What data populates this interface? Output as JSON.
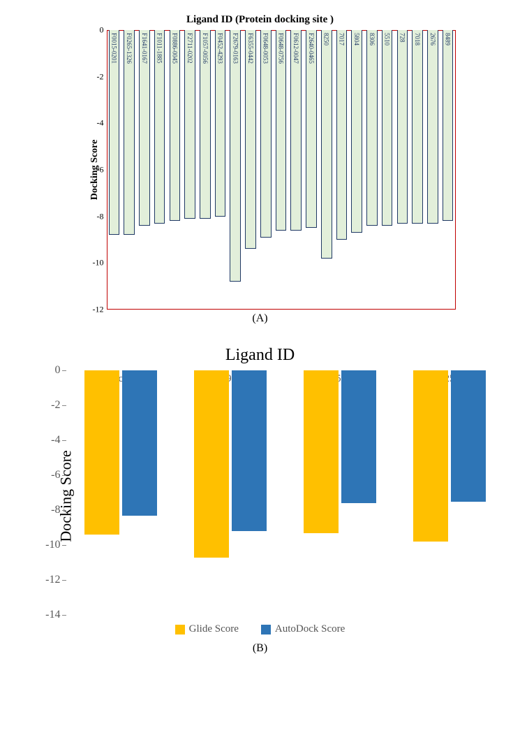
{
  "chartA": {
    "type": "bar",
    "title": "Ligand ID (Protein docking site )",
    "title_fontsize": 15,
    "ylabel": "Docking Score",
    "ylabel_fontsize": 14,
    "ylim": [
      -12,
      0
    ],
    "ytick_step": 2,
    "yticks": [
      0,
      -2,
      -4,
      -6,
      -8,
      -10,
      -12
    ],
    "plot_border_color": "#c00000",
    "bar_fill": "#e2efda",
    "bar_border": "#1f3864",
    "bar_border_width": 1.5,
    "bar_label_color": "#1f3864",
    "bar_label_fontsize": 9,
    "background_color": "#ffffff",
    "categories": [
      "F0015-0201",
      "F0265-1326",
      "F1641-0167",
      "F1011-1885",
      "F0886-0045",
      "F2711-0202",
      "F1057-0056",
      "F0452-4293",
      "F2679-0163",
      "F6355-0442",
      "F0648-0053",
      "F0648-0756",
      "F0612-0047",
      "F2640-0465",
      "8250",
      "7017",
      "5804",
      "8306",
      "5510",
      "728",
      "7018",
      "2676",
      "8489"
    ],
    "values": [
      -8.8,
      -8.8,
      -8.4,
      -8.3,
      -8.2,
      -8.1,
      -8.1,
      -8.0,
      -10.8,
      -9.4,
      -8.9,
      -8.6,
      -8.6,
      -8.5,
      -9.8,
      -9.0,
      -8.7,
      -8.4,
      -8.4,
      -8.3,
      -8.3,
      -8.3,
      -8.2
    ],
    "caption": "(A)"
  },
  "chartB": {
    "type": "grouped-bar",
    "title": "Ligand ID",
    "title_fontsize": 24,
    "ylabel": "Docking Score",
    "ylabel_fontsize": 22,
    "ylim": [
      -14,
      0
    ],
    "ytick_step": 2,
    "yticks": [
      0,
      -2,
      -4,
      -6,
      -8,
      -10,
      -12,
      -14
    ],
    "tick_color": "#888888",
    "tick_label_color": "#595959",
    "background_color": "#ffffff",
    "categories": [
      "Reference ligand",
      "F2679-0163",
      "F6355-0442",
      "8250"
    ],
    "series": [
      {
        "name": "Glide Score",
        "color": "#ffc000",
        "values": [
          -9.4,
          -10.7,
          -9.3,
          -9.8
        ]
      },
      {
        "name": "AutoDock Score",
        "color": "#2e75b6",
        "values": [
          -8.3,
          -9.2,
          -7.6,
          -7.5
        ]
      }
    ],
    "bar_width_ratio": 0.32,
    "caption": "(B)"
  }
}
